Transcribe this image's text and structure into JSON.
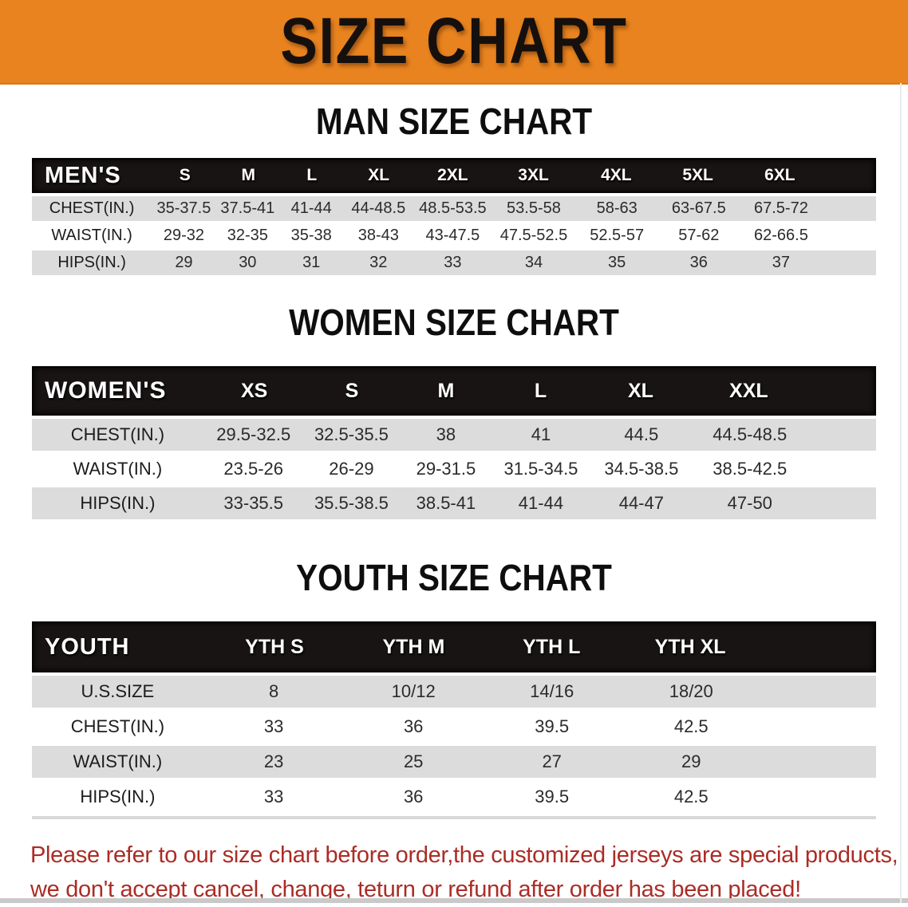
{
  "banner": {
    "title": "SIZE CHART"
  },
  "colors": {
    "banner_bg": "#e8831f",
    "table_header_bg": "#181413",
    "row_stripe": "#dcdcdc",
    "note_text": "#ab2c26"
  },
  "chart_data": [
    {
      "type": "table",
      "id": "men",
      "title": "MAN SIZE CHART",
      "corner_label": "MEN'S",
      "columns": [
        "S",
        "M",
        "L",
        "XL",
        "2XL",
        "3XL",
        "4XL",
        "5XL",
        "6XL"
      ],
      "rows": [
        {
          "label": "CHEST(IN.)",
          "values": [
            "35-37.5",
            "37.5-41",
            "41-44",
            "44-48.5",
            "48.5-53.5",
            "53.5-58",
            "58-63",
            "63-67.5",
            "67.5-72"
          ]
        },
        {
          "label": "WAIST(IN.)",
          "values": [
            "29-32",
            "32-35",
            "35-38",
            "38-43",
            "43-47.5",
            "47.5-52.5",
            "52.5-57",
            "57-62",
            "62-66.5"
          ]
        },
        {
          "label": "HIPS(IN.)",
          "values": [
            "29",
            "30",
            "31",
            "32",
            "33",
            "34",
            "35",
            "36",
            "37"
          ]
        }
      ]
    },
    {
      "type": "table",
      "id": "women",
      "title": "WOMEN SIZE CHART",
      "corner_label": "WOMEN'S",
      "columns": [
        "XS",
        "S",
        "M",
        "L",
        "XL",
        "XXL"
      ],
      "rows": [
        {
          "label": "CHEST(IN.)",
          "values": [
            "29.5-32.5",
            "32.5-35.5",
            "38",
            "41",
            "44.5",
            "44.5-48.5"
          ]
        },
        {
          "label": "WAIST(IN.)",
          "values": [
            "23.5-26",
            "26-29",
            "29-31.5",
            "31.5-34.5",
            "34.5-38.5",
            "38.5-42.5"
          ]
        },
        {
          "label": "HIPS(IN.)",
          "values": [
            "33-35.5",
            "35.5-38.5",
            "38.5-41",
            "41-44",
            "44-47",
            "47-50"
          ]
        }
      ]
    },
    {
      "type": "table",
      "id": "youth",
      "title": "YOUTH SIZE CHART",
      "corner_label": "YOUTH",
      "columns": [
        "YTH S",
        "YTH M",
        "YTH L",
        "YTH XL"
      ],
      "rows": [
        {
          "label": "U.S.SIZE",
          "values": [
            "8",
            "10/12",
            "14/16",
            "18/20"
          ]
        },
        {
          "label": "CHEST(IN.)",
          "values": [
            "33",
            "36",
            "39.5",
            "42.5"
          ]
        },
        {
          "label": "WAIST(IN.)",
          "values": [
            "23",
            "25",
            "27",
            "29"
          ]
        },
        {
          "label": "HIPS(IN.)",
          "values": [
            "33",
            "36",
            "39.5",
            "42.5"
          ]
        }
      ]
    }
  ],
  "footer_note": {
    "line1": "Please refer to our size chart before order,the customized jerseys are special products,",
    "line2": "we don't accept cancel, change, teturn or refund after order has been placed!"
  }
}
